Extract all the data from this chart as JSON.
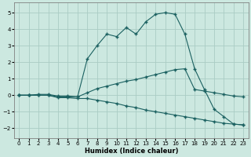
{
  "title": "",
  "xlabel": "Humidex (Indice chaleur)",
  "ylabel": "",
  "background_color": "#cce8e0",
  "grid_color": "#aaccc4",
  "line_color": "#1a6060",
  "xlim": [
    -0.5,
    23.5
  ],
  "ylim": [
    -2.6,
    5.6
  ],
  "xticks": [
    0,
    1,
    2,
    3,
    4,
    5,
    6,
    7,
    8,
    9,
    10,
    11,
    12,
    13,
    14,
    15,
    16,
    17,
    18,
    19,
    20,
    21,
    22,
    23
  ],
  "yticks": [
    -2,
    -1,
    0,
    1,
    2,
    3,
    4,
    5
  ],
  "series": [
    {
      "x": [
        0,
        1,
        2,
        3,
        4,
        5,
        6,
        7,
        8,
        9,
        10,
        11,
        12,
        13,
        14,
        15,
        16,
        17,
        18,
        19,
        20,
        21,
        22,
        23
      ],
      "y": [
        0,
        0,
        0,
        0,
        -0.1,
        -0.1,
        -0.1,
        2.2,
        3.0,
        3.7,
        3.55,
        4.1,
        3.7,
        4.45,
        4.9,
        5.0,
        4.9,
        3.7,
        1.6,
        0.35,
        -0.85,
        -1.3,
        -1.75,
        -1.8
      ]
    },
    {
      "x": [
        0,
        1,
        2,
        3,
        4,
        5,
        6,
        7,
        8,
        9,
        10,
        11,
        12,
        13,
        14,
        15,
        16,
        17,
        18,
        19,
        20,
        21,
        22,
        23
      ],
      "y": [
        0,
        0,
        0.05,
        0.05,
        -0.05,
        -0.05,
        -0.1,
        0.15,
        0.4,
        0.55,
        0.7,
        0.85,
        0.95,
        1.1,
        1.25,
        1.4,
        1.55,
        1.6,
        0.35,
        0.25,
        0.15,
        0.05,
        -0.05,
        -0.1
      ]
    },
    {
      "x": [
        0,
        1,
        2,
        3,
        4,
        5,
        6,
        7,
        8,
        9,
        10,
        11,
        12,
        13,
        14,
        15,
        16,
        17,
        18,
        19,
        20,
        21,
        22,
        23
      ],
      "y": [
        0,
        0,
        0,
        0,
        -0.15,
        -0.15,
        -0.2,
        -0.2,
        -0.3,
        -0.4,
        -0.5,
        -0.65,
        -0.75,
        -0.9,
        -1.0,
        -1.1,
        -1.2,
        -1.3,
        -1.4,
        -1.5,
        -1.6,
        -1.7,
        -1.75,
        -1.8
      ]
    }
  ]
}
